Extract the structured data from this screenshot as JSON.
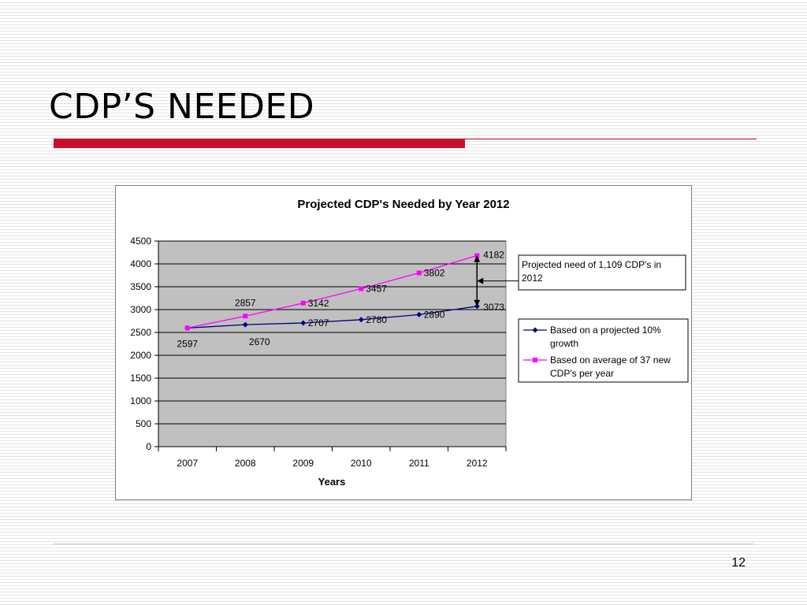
{
  "slide": {
    "title": "CDP’S NEEDED",
    "page_number": "12"
  },
  "chart_data": {
    "type": "line",
    "title": "Projected CDP's Needed by Year 2012",
    "xlabel": "Years",
    "ylabel": "",
    "categories": [
      "2007",
      "2008",
      "2009",
      "2010",
      "2011",
      "2012"
    ],
    "ylim": [
      0,
      4500
    ],
    "yticks": [
      0,
      500,
      1000,
      1500,
      2000,
      2500,
      3000,
      3500,
      4000,
      4500
    ],
    "grid": true,
    "legend_position": "right",
    "series": [
      {
        "name": "Based on a projected 10% growth",
        "values": [
          2597,
          2670,
          2707,
          2780,
          2890,
          3073
        ],
        "labels": [
          "2597",
          "2670",
          "2707",
          "2780",
          "2890",
          "3073"
        ],
        "color": "#000080",
        "marker": "diamond"
      },
      {
        "name": "Based on average of 37 new CDP's per year",
        "values": [
          2597,
          2857,
          3142,
          3457,
          3802,
          4182
        ],
        "labels": [
          "",
          "2857",
          "3142",
          "3457",
          "3802",
          "4182"
        ],
        "color": "#ff00ff",
        "marker": "square"
      }
    ],
    "annotation": {
      "text": "Projected need of 1,109 CDP's in 2012",
      "lines": [
        "Projected need of 1,109 CDP's in",
        "2012"
      ],
      "category": "2012",
      "from_value": 3073,
      "to_value": 4182
    },
    "legend_lines": [
      [
        "Based on a projected 10%",
        "growth"
      ],
      [
        "Based on average of 37 new",
        "CDP's per year"
      ]
    ],
    "plot_background": "#c0c0c0"
  }
}
